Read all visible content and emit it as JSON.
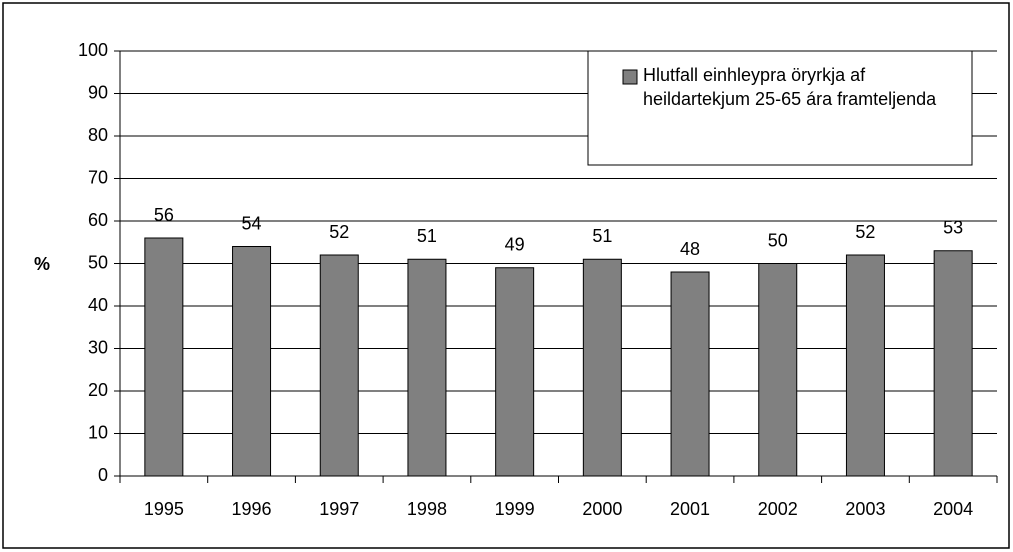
{
  "chart_data": {
    "type": "bar",
    "categories": [
      "1995",
      "1996",
      "1997",
      "1998",
      "1999",
      "2000",
      "2001",
      "2002",
      "2003",
      "2004"
    ],
    "series": [
      {
        "name": "Hlutfall einhleypra öryrkja af heildartekjum 25-65 ára framteljenda",
        "color": "#808080",
        "values": [
          56,
          54,
          52,
          51,
          49,
          51,
          48,
          50,
          52,
          53
        ]
      }
    ],
    "y_label": "%",
    "ylim": [
      0,
      100
    ],
    "yticks": [
      0,
      10,
      20,
      30,
      40,
      50,
      60,
      70,
      80,
      90,
      100
    ],
    "grid": true,
    "legend": "top-right"
  }
}
